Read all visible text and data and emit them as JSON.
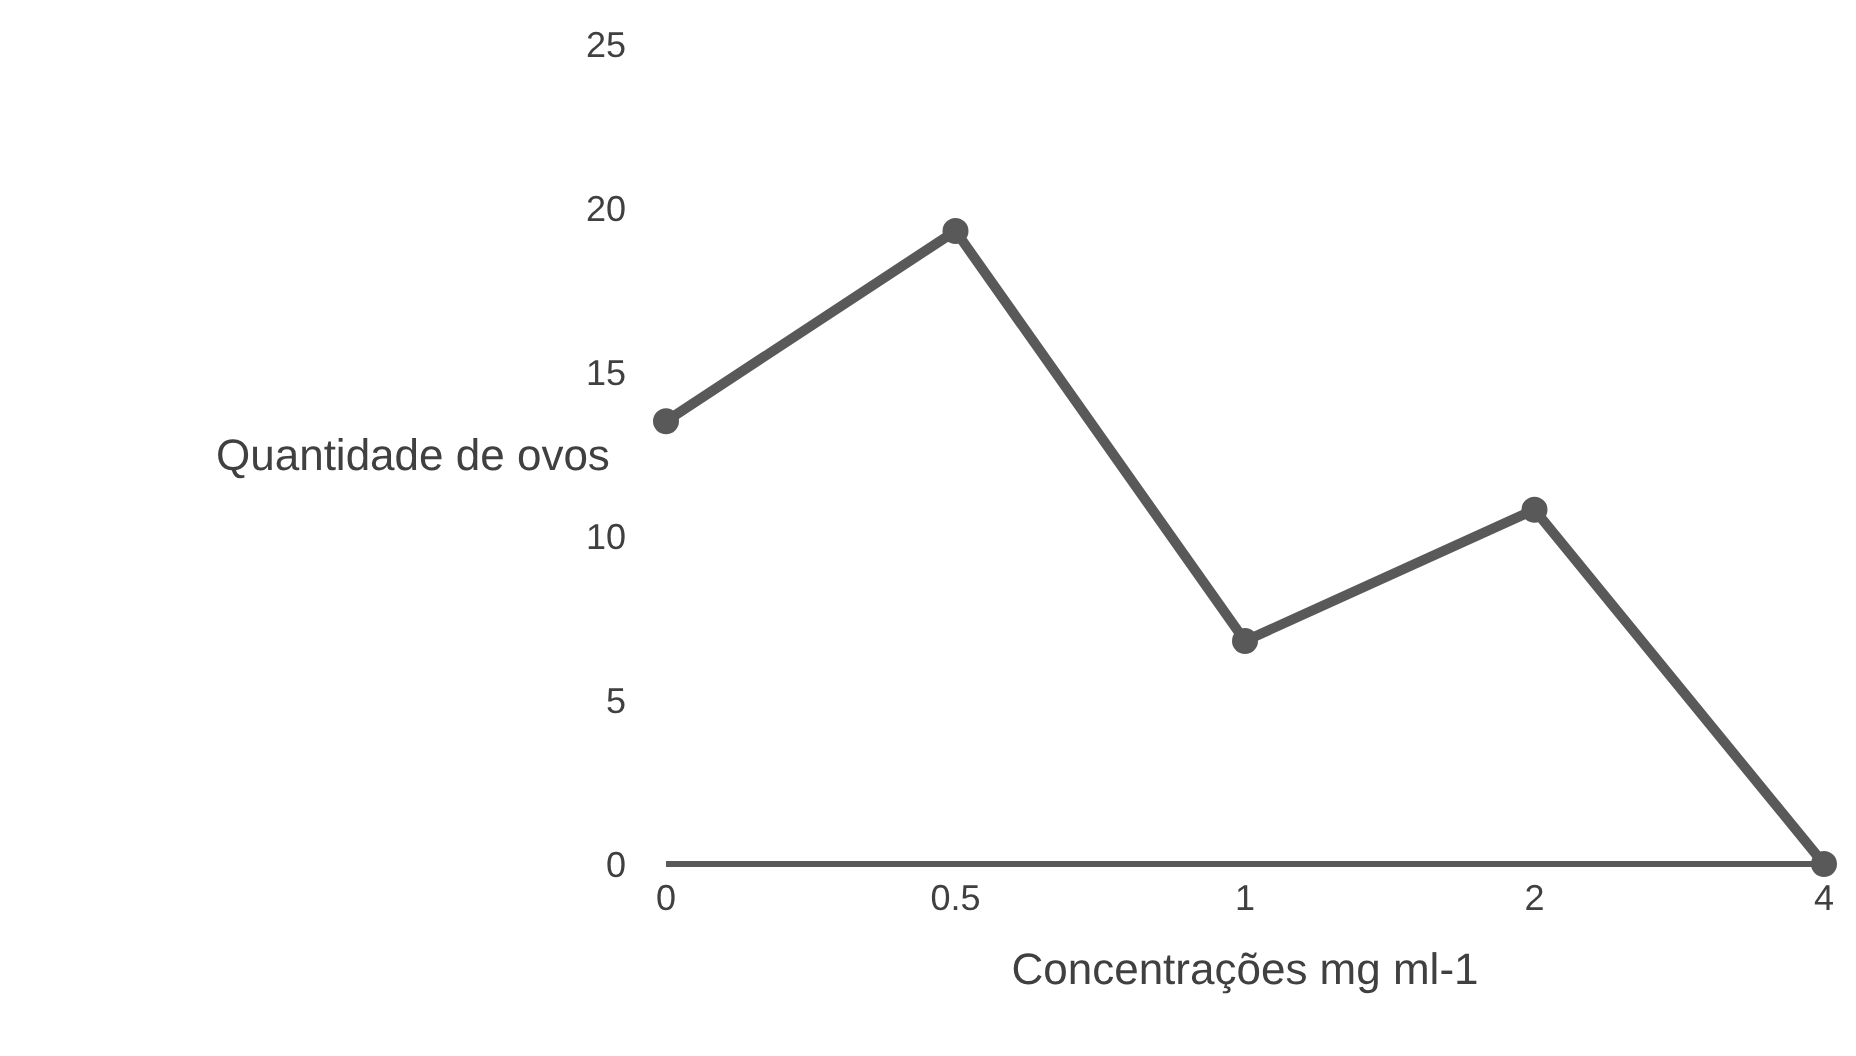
{
  "chart_data": {
    "type": "line",
    "xlabel": "Concentrações mg ml-1",
    "ylabel": "Quantidade de ovos",
    "categories": [
      "0",
      "0.5",
      "1",
      "2",
      "4"
    ],
    "series": [
      {
        "color": "#595959",
        "values": [
          13.5,
          19.3,
          6.8,
          10.8,
          0
        ]
      }
    ],
    "ylim": [
      0,
      25
    ],
    "yticks": [
      0,
      5,
      10,
      15,
      20,
      25
    ],
    "grid": false,
    "legend": false,
    "marker": "circle",
    "line_style": "solid"
  }
}
